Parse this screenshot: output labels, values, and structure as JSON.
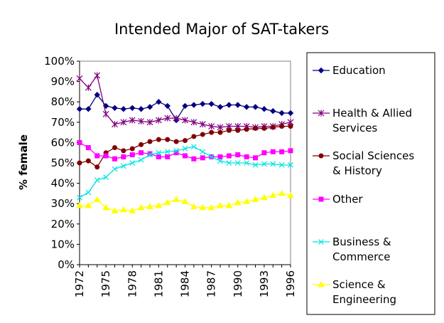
{
  "chart_data": {
    "type": "line",
    "title": "Intended Major of SAT-takers",
    "xlabel": "",
    "ylabel": "% female",
    "ylim": [
      0,
      100
    ],
    "y_ticks": [
      "0%",
      "10%",
      "20%",
      "30%",
      "40%",
      "50%",
      "60%",
      "70%",
      "80%",
      "90%",
      "100%"
    ],
    "x": [
      1972,
      1973,
      1974,
      1975,
      1976,
      1977,
      1978,
      1979,
      1980,
      1981,
      1982,
      1983,
      1984,
      1985,
      1986,
      1987,
      1988,
      1989,
      1990,
      1991,
      1992,
      1993,
      1994,
      1995,
      1996
    ],
    "x_tick_labels": [
      "1972",
      "1975",
      "1978",
      "1981",
      "1984",
      "1987",
      "1990",
      "1993",
      "1996"
    ],
    "grid": false,
    "legend_position": "right",
    "series": [
      {
        "name": "Education",
        "legend_lines": [
          "Education"
        ],
        "color": "#000080",
        "marker": "diamond",
        "values": [
          76.5,
          76.5,
          83.5,
          78,
          77,
          76.5,
          77,
          76.5,
          77.5,
          80,
          78,
          71,
          78,
          78.5,
          79,
          79,
          77.5,
          78.5,
          78.5,
          77.5,
          77.5,
          76.5,
          75.5,
          74.5,
          74.5
        ]
      },
      {
        "name": "Health & Allied Services",
        "legend_lines": [
          "Health & Allied",
          "Services"
        ],
        "color": "#800080",
        "marker": "asterisk",
        "values": [
          91.5,
          87,
          93,
          74,
          69,
          70,
          71,
          70.5,
          70,
          71,
          72,
          72,
          71,
          70,
          69,
          68,
          67.5,
          68,
          68,
          68,
          67.5,
          68,
          68,
          69,
          70
        ]
      },
      {
        "name": "Social Sciences & History",
        "legend_lines": [
          "Social Sciences",
          "& History"
        ],
        "color": "#800000",
        "marker": "circle",
        "values": [
          50,
          51,
          48,
          55,
          57.5,
          56,
          57,
          59,
          60.5,
          61.5,
          61.5,
          60.5,
          61,
          63,
          64,
          65,
          65,
          66,
          66,
          66.5,
          67,
          67,
          67.5,
          68,
          68
        ]
      },
      {
        "name": "Other",
        "legend_lines": [
          "Other"
        ],
        "color": "#ff00ff",
        "marker": "square",
        "values": [
          60,
          57.5,
          53.5,
          53.5,
          52,
          53,
          54,
          55,
          54.5,
          53,
          53,
          55,
          53.5,
          52,
          52.5,
          53,
          53,
          53.5,
          54,
          53,
          52.5,
          55,
          55.5,
          55.5,
          56
        ]
      },
      {
        "name": "Business & Commerce",
        "legend_lines": [
          "Business &",
          "Commerce"
        ],
        "color": "#00e5e5",
        "marker": "x",
        "values": [
          33,
          35.5,
          41.5,
          43,
          47,
          48.5,
          50,
          51.5,
          54,
          55,
          55.5,
          56,
          57,
          58,
          55.5,
          53,
          51,
          50,
          50,
          50,
          49,
          49.5,
          49.5,
          49,
          49
        ]
      },
      {
        "name": "Science & Engineering",
        "legend_lines": [
          "Science &",
          "Engineering"
        ],
        "color": "#ffff00",
        "marker": "triangle",
        "values": [
          29,
          29,
          32,
          28,
          26.5,
          27,
          26.5,
          28,
          28.5,
          29,
          30.5,
          32,
          31,
          28.5,
          28,
          28,
          29,
          29,
          30.5,
          31,
          32,
          33,
          34,
          35,
          34
        ]
      }
    ]
  }
}
